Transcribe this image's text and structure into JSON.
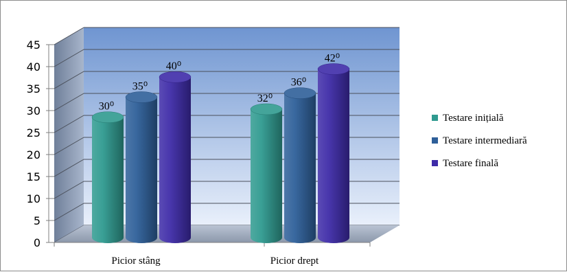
{
  "chart_data": {
    "type": "bar",
    "categories": [
      "Picior stâng",
      "Picior drept"
    ],
    "series": [
      {
        "name": "Testare inițială",
        "values": [
          30,
          32
        ],
        "labels": [
          "30⁰",
          "32⁰"
        ],
        "color": "#2f9a8f"
      },
      {
        "name": "Testare intermediară",
        "values": [
          35,
          36
        ],
        "labels": [
          "35⁰",
          "36⁰"
        ],
        "color": "#2e5f99"
      },
      {
        "name": "Testare finală",
        "values": [
          40,
          42
        ],
        "labels": [
          "40⁰",
          "42⁰"
        ],
        "color": "#3e2ba8"
      }
    ],
    "ylim": [
      0,
      45
    ],
    "yticks": [
      "0",
      "5",
      "10",
      "15",
      "20",
      "25",
      "30",
      "35",
      "40",
      "45"
    ],
    "grid": true,
    "legend_position": "right",
    "style": "3d-cylinder"
  }
}
